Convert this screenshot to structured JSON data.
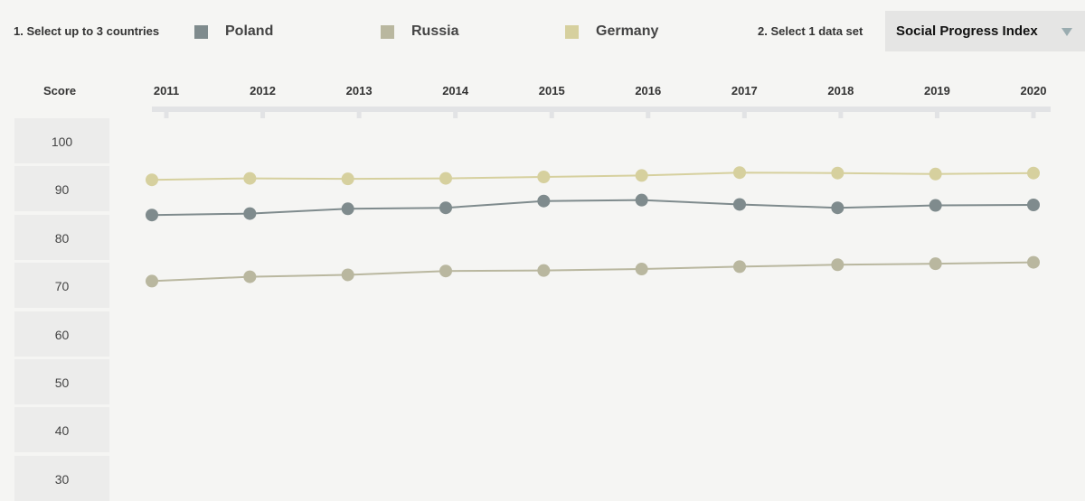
{
  "controls": {
    "step1_label": "1. Select up to 3 countries",
    "step2_label": "2. Select 1 data set",
    "dataset_selected": "Social Progress Index",
    "countries": [
      {
        "name": "Poland",
        "color": "#7f8b8d"
      },
      {
        "name": "Russia",
        "color": "#b9b79f"
      },
      {
        "name": "Germany",
        "color": "#d6d09e"
      }
    ]
  },
  "chart_data": {
    "type": "line",
    "ylabel": "Score",
    "x": [
      "2011",
      "2012",
      "2013",
      "2014",
      "2015",
      "2016",
      "2017",
      "2018",
      "2019",
      "2020"
    ],
    "yticks": [
      100,
      90,
      80,
      70,
      60,
      50,
      40,
      30
    ],
    "series": [
      {
        "name": "Germany",
        "color": "#d6d09e",
        "values": [
          92.1,
          92.4,
          92.3,
          92.4,
          92.7,
          93.0,
          93.6,
          93.5,
          93.3,
          93.5
        ]
      },
      {
        "name": "Poland",
        "color": "#7f8b8d",
        "values": [
          84.8,
          85.1,
          86.1,
          86.3,
          87.7,
          87.9,
          87.0,
          86.3,
          86.8,
          86.9
        ]
      },
      {
        "name": "Russia",
        "color": "#b9b79f",
        "values": [
          71.1,
          72.0,
          72.4,
          73.2,
          73.3,
          73.6,
          74.1,
          74.5,
          74.7,
          75.0
        ]
      }
    ]
  }
}
